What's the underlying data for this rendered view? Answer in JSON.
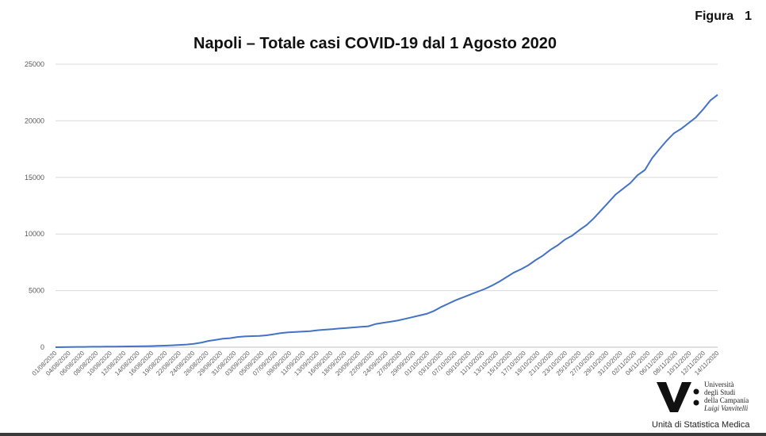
{
  "figure_label": "Figura",
  "figure_number": "1",
  "logo": {
    "line1": "Università",
    "line2": "degli Studi",
    "line3": "della Campania",
    "line4": "Luigi Vanvitelli",
    "unit": "Unità di Statistica Medica"
  },
  "colors": {
    "line": "#4472c4",
    "grid": "#d9d9d9"
  },
  "chart_data": {
    "type": "line",
    "title": "Napoli – Totale casi COVID-19 dal 1 Agosto 2020",
    "xlabel": "",
    "ylabel": "",
    "ylim": [
      0,
      25000
    ],
    "yticks": [
      0,
      5000,
      10000,
      15000,
      20000,
      25000
    ],
    "grid": true,
    "legend": "none",
    "x_tick_labels": [
      "01/08/2020",
      "04/08/2020",
      "06/08/2020",
      "08/08/2020",
      "10/08/2020",
      "12/08/2020",
      "14/08/2020",
      "16/08/2020",
      "19/08/2020",
      "22/08/2020",
      "24/08/2020",
      "26/08/2020",
      "29/08/2020",
      "31/08/2020",
      "03/09/2020",
      "05/09/2020",
      "07/09/2020",
      "09/09/2020",
      "11/09/2020",
      "13/09/2020",
      "16/09/2020",
      "18/09/2020",
      "20/09/2020",
      "22/09/2020",
      "24/09/2020",
      "27/09/2020",
      "29/09/2020",
      "01/10/2020",
      "03/10/2020",
      "07/10/2020",
      "09/10/2020",
      "11/10/2020",
      "13/10/2020",
      "15/10/2020",
      "17/10/2020",
      "19/10/2020",
      "21/10/2020",
      "23/10/2020",
      "25/10/2020",
      "27/10/2020",
      "29/10/2020",
      "31/10/2020",
      "02/11/2020",
      "04/11/2020",
      "06/11/2020",
      "08/11/2020",
      "10/11/2020",
      "12/11/2020",
      "14/11/2020"
    ],
    "series": [
      {
        "values": [
          0,
          10,
          20,
          30,
          30,
          40,
          40,
          50,
          50,
          60,
          70,
          80,
          90,
          100,
          120,
          140,
          170,
          200,
          240,
          300,
          400,
          550,
          650,
          750,
          800,
          900,
          950,
          980,
          1000,
          1050,
          1150,
          1250,
          1320,
          1350,
          1380,
          1420,
          1500,
          1550,
          1600,
          1650,
          1700,
          1750,
          1800,
          1850,
          2050,
          2150,
          2250,
          2350,
          2500,
          2650,
          2800,
          2950,
          3200,
          3550,
          3850,
          4150,
          4400,
          4650,
          4900,
          5150,
          5450,
          5800,
          6200,
          6600,
          6900,
          7250,
          7700,
          8100,
          8600,
          9000,
          9500,
          9850,
          10350,
          10800,
          11400,
          12100,
          12800,
          13500,
          14000,
          14500,
          15200,
          15650,
          16700,
          17500,
          18250,
          18900,
          19300,
          19800,
          20300,
          21000,
          21800,
          22300
        ]
      }
    ]
  }
}
